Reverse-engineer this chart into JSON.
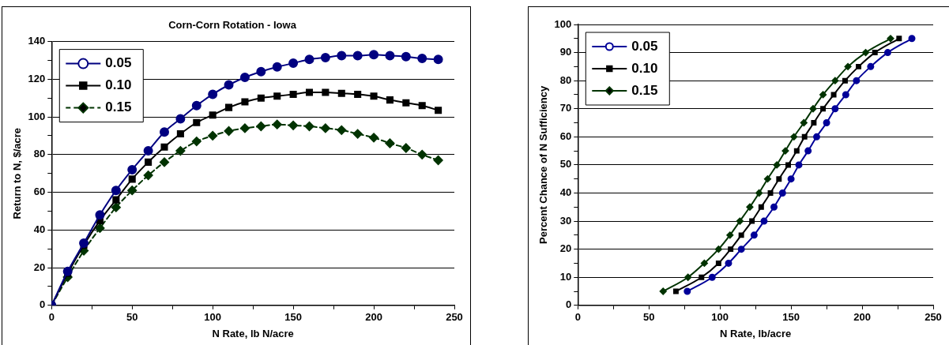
{
  "chart_data": [
    {
      "type": "line",
      "title": "Corn-Corn Rotation - Iowa",
      "xlabel": "N Rate, lb N/acre",
      "ylabel": "Return to N, $/acre",
      "x": [
        0,
        10,
        20,
        30,
        40,
        50,
        60,
        70,
        80,
        90,
        100,
        110,
        120,
        130,
        140,
        150,
        160,
        170,
        180,
        190,
        200,
        210,
        220,
        230,
        240
      ],
      "series": [
        {
          "name": "0.05",
          "color": "#000080",
          "marker": "circle",
          "line_style": "solid",
          "values": [
            0,
            18,
            33,
            48,
            61,
            72,
            82,
            92,
            99,
            106,
            112,
            117,
            121,
            124,
            126.5,
            128.5,
            130.5,
            131.5,
            132.5,
            132.5,
            133,
            132.5,
            132,
            131,
            130.5
          ]
        },
        {
          "name": "0.10",
          "color": "#000000",
          "marker": "square",
          "line_style": "solid",
          "values": [
            0,
            17,
            32,
            45,
            56,
            67,
            76,
            84,
            91,
            97,
            101,
            105,
            108,
            110,
            111,
            112,
            113,
            113,
            112.5,
            112,
            111,
            109,
            107.5,
            106,
            103.5
          ]
        },
        {
          "name": "0.15",
          "color": "#003300",
          "marker": "diamond",
          "line_style": "dashed",
          "values": [
            0,
            15,
            29,
            41,
            52,
            61,
            69,
            76,
            82,
            87,
            90,
            92.5,
            94,
            95,
            96,
            95.5,
            95,
            94,
            93,
            91,
            89,
            86,
            83.5,
            80,
            77
          ]
        }
      ],
      "xlim": [
        0,
        250
      ],
      "xticks": [
        0,
        {
          "value": 25,
          "label": null
        },
        50,
        {
          "value": 75,
          "label": null
        },
        100,
        {
          "value": 125,
          "label": null
        },
        150,
        {
          "value": 175,
          "label": null
        },
        200,
        {
          "value": 225,
          "label": null
        },
        250
      ],
      "ylim": [
        0,
        140
      ],
      "yticks": [
        0,
        {
          "value": 10,
          "label": null
        },
        20,
        {
          "value": 30,
          "label": null
        },
        40,
        {
          "value": 50,
          "label": null
        },
        60,
        {
          "value": 70,
          "label": null
        },
        80,
        {
          "value": 90,
          "label": null
        },
        100,
        {
          "value": 110,
          "label": null
        },
        120,
        {
          "value": 130,
          "label": null
        },
        140
      ],
      "grid": "y",
      "legend": "top left"
    },
    {
      "type": "line",
      "xlabel": "N Rate, lb/acre",
      "ylabel": "Percent Chance of N Sufficiency",
      "series": [
        {
          "name": "0.05",
          "color": "#000099",
          "marker": "circle",
          "line_style": "solid",
          "x": [
            77,
            94.5,
            106,
            115,
            124,
            131,
            138,
            144,
            150,
            155.5,
            162,
            168,
            175,
            181,
            188.5,
            196,
            206,
            218,
            235
          ],
          "values": [
            5,
            10,
            15,
            20,
            25,
            30,
            35,
            40,
            45,
            50,
            55,
            60,
            65,
            70,
            75,
            80,
            85,
            90,
            95
          ]
        },
        {
          "name": "0.10",
          "color": "#000000",
          "marker": "square",
          "line_style": "solid",
          "x": [
            69,
            87,
            99,
            107.5,
            115,
            122.5,
            129,
            135.5,
            141.5,
            148,
            154,
            159.5,
            166,
            172.5,
            180,
            188,
            197.5,
            209,
            226
          ],
          "values": [
            5,
            10,
            15,
            20,
            25,
            30,
            35,
            40,
            45,
            50,
            55,
            60,
            65,
            70,
            75,
            80,
            85,
            90,
            95
          ]
        },
        {
          "name": "0.15",
          "color": "#003300",
          "marker": "diamond",
          "line_style": "solid",
          "x": [
            60,
            77.5,
            89,
            99,
            107,
            114,
            121,
            127.5,
            133.5,
            140,
            146,
            152,
            159,
            165.5,
            172.5,
            181,
            190,
            202.5,
            220
          ],
          "values": [
            5,
            10,
            15,
            20,
            25,
            30,
            35,
            40,
            45,
            50,
            55,
            60,
            65,
            70,
            75,
            80,
            85,
            90,
            95
          ]
        }
      ],
      "xlim": [
        0,
        250
      ],
      "xticks": [
        0,
        {
          "value": 25,
          "label": null
        },
        50,
        {
          "value": 75,
          "label": null
        },
        100,
        {
          "value": 125,
          "label": null
        },
        150,
        {
          "value": 175,
          "label": null
        },
        200,
        {
          "value": 225,
          "label": null
        },
        250
      ],
      "ylim": [
        0,
        100
      ],
      "yticks": [
        0,
        {
          "value": 5,
          "label": null
        },
        10,
        {
          "value": 15,
          "label": null
        },
        20,
        {
          "value": 25,
          "label": null
        },
        30,
        {
          "value": 35,
          "label": null
        },
        40,
        {
          "value": 45,
          "label": null
        },
        50,
        {
          "value": 55,
          "label": null
        },
        60,
        {
          "value": 65,
          "label": null
        },
        70,
        {
          "value": 75,
          "label": null
        },
        80,
        {
          "value": 85,
          "label": null
        },
        90,
        {
          "value": 95,
          "label": null
        },
        100
      ],
      "grid": "y",
      "legend": "top left"
    }
  ]
}
